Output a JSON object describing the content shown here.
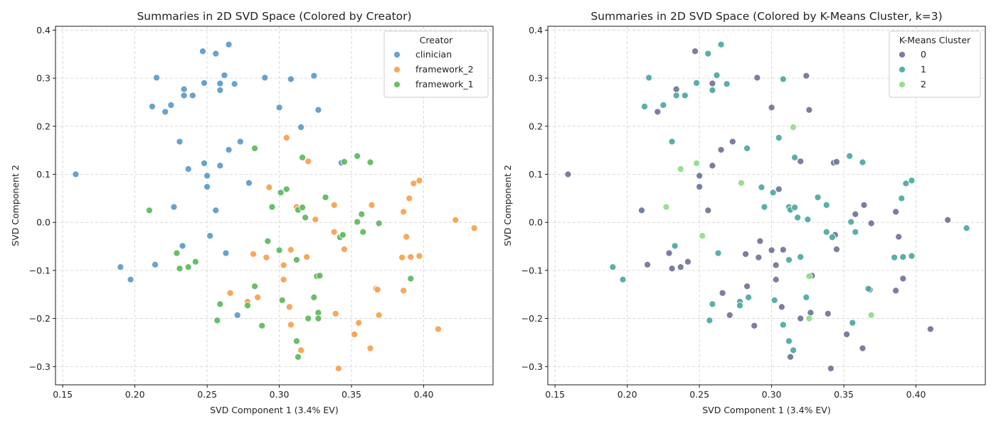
{
  "chart_data": [
    {
      "type": "scatter",
      "title": "Summaries in 2D SVD Space (Colored by Creator)",
      "xlabel": "SVD Component 1 (3.4% EV)",
      "ylabel": "SVD Component 2",
      "xlim": [
        0.145,
        0.448
      ],
      "ylim": [
        -0.338,
        0.408
      ],
      "xticks": [
        0.15,
        0.2,
        0.25,
        0.3,
        0.35,
        0.4
      ],
      "xtick_labels": [
        "0.15",
        "0.20",
        "0.25",
        "0.30",
        "0.35",
        "0.40"
      ],
      "yticks": [
        -0.3,
        -0.2,
        -0.1,
        0.0,
        0.1,
        0.2,
        0.3,
        0.4
      ],
      "ytick_labels": [
        "−0.3",
        "−0.2",
        "−0.1",
        "0.0",
        "0.1",
        "0.2",
        "0.3",
        "0.4"
      ],
      "grid": true,
      "legend": {
        "title": "Creator",
        "placement": "top-right"
      },
      "series": [
        {
          "name": "clinician",
          "color": "#5b9ac9",
          "points": [
            [
              0.159,
              0.1
            ],
            [
              0.19,
              -0.093
            ],
            [
              0.197,
              -0.119
            ],
            [
              0.212,
              0.241
            ],
            [
              0.214,
              -0.088
            ],
            [
              0.215,
              0.301
            ],
            [
              0.221,
              0.23
            ],
            [
              0.225,
              0.244
            ],
            [
              0.227,
              0.032
            ],
            [
              0.231,
              0.168
            ],
            [
              0.233,
              -0.049
            ],
            [
              0.234,
              0.277
            ],
            [
              0.234,
              0.264
            ],
            [
              0.237,
              0.111
            ],
            [
              0.24,
              0.264
            ],
            [
              0.247,
              0.356
            ],
            [
              0.248,
              0.29
            ],
            [
              0.248,
              0.123
            ],
            [
              0.25,
              0.097
            ],
            [
              0.25,
              0.074
            ],
            [
              0.252,
              -0.028
            ],
            [
              0.256,
              0.025
            ],
            [
              0.256,
              0.351
            ],
            [
              0.259,
              0.289
            ],
            [
              0.259,
              0.275
            ],
            [
              0.259,
              0.118
            ],
            [
              0.262,
              0.306
            ],
            [
              0.263,
              -0.064
            ],
            [
              0.265,
              0.37
            ],
            [
              0.265,
              0.151
            ],
            [
              0.269,
              0.288
            ],
            [
              0.271,
              -0.193
            ],
            [
              0.273,
              0.168
            ],
            [
              0.279,
              0.082
            ],
            [
              0.29,
              0.301
            ],
            [
              0.3,
              0.239
            ],
            [
              0.308,
              0.298
            ],
            [
              0.315,
              0.198
            ],
            [
              0.324,
              0.305
            ],
            [
              0.327,
              0.234
            ],
            [
              0.343,
              0.124
            ]
          ]
        },
        {
          "name": "framework_2",
          "color": "#f9a04c",
          "points": [
            [
              0.266,
              -0.147
            ],
            [
              0.278,
              -0.165
            ],
            [
              0.282,
              -0.066
            ],
            [
              0.285,
              -0.156
            ],
            [
              0.291,
              -0.073
            ],
            [
              0.293,
              0.073
            ],
            [
              0.303,
              -0.089
            ],
            [
              0.303,
              -0.119
            ],
            [
              0.305,
              0.176
            ],
            [
              0.307,
              -0.176
            ],
            [
              0.308,
              -0.057
            ],
            [
              0.308,
              -0.213
            ],
            [
              0.312,
              0.032
            ],
            [
              0.315,
              -0.266
            ],
            [
              0.319,
              -0.072
            ],
            [
              0.32,
              0.127
            ],
            [
              0.325,
              0.006
            ],
            [
              0.338,
              0.036
            ],
            [
              0.338,
              -0.02
            ],
            [
              0.339,
              -0.19
            ],
            [
              0.341,
              -0.304
            ],
            [
              0.345,
              -0.056
            ],
            [
              0.352,
              -0.233
            ],
            [
              0.355,
              -0.209
            ],
            [
              0.363,
              -0.262
            ],
            [
              0.364,
              0.036
            ],
            [
              0.367,
              -0.138
            ],
            [
              0.368,
              -0.14
            ],
            [
              0.369,
              -0.193
            ],
            [
              0.385,
              -0.073
            ],
            [
              0.386,
              0.022
            ],
            [
              0.386,
              -0.142
            ],
            [
              0.388,
              -0.03
            ],
            [
              0.39,
              0.05
            ],
            [
              0.391,
              -0.072
            ],
            [
              0.393,
              0.081
            ],
            [
              0.397,
              0.087
            ],
            [
              0.397,
              -0.07
            ],
            [
              0.41,
              -0.222
            ],
            [
              0.422,
              0.005
            ],
            [
              0.435,
              -0.012
            ]
          ]
        },
        {
          "name": "framework_1",
          "color": "#5cb85c",
          "points": [
            [
              0.21,
              0.025
            ],
            [
              0.229,
              -0.064
            ],
            [
              0.231,
              -0.096
            ],
            [
              0.237,
              -0.093
            ],
            [
              0.242,
              -0.082
            ],
            [
              0.257,
              -0.204
            ],
            [
              0.259,
              -0.17
            ],
            [
              0.278,
              -0.173
            ],
            [
              0.283,
              -0.133
            ],
            [
              0.283,
              0.154
            ],
            [
              0.288,
              -0.215
            ],
            [
              0.292,
              -0.039
            ],
            [
              0.295,
              0.032
            ],
            [
              0.3,
              -0.058
            ],
            [
              0.301,
              0.062
            ],
            [
              0.302,
              -0.162
            ],
            [
              0.305,
              0.069
            ],
            [
              0.312,
              -0.078
            ],
            [
              0.312,
              -0.247
            ],
            [
              0.313,
              -0.28
            ],
            [
              0.313,
              0.026
            ],
            [
              0.316,
              0.135
            ],
            [
              0.316,
              0.031
            ],
            [
              0.318,
              0.01
            ],
            [
              0.32,
              -0.2
            ],
            [
              0.324,
              -0.156
            ],
            [
              0.326,
              -0.112
            ],
            [
              0.327,
              -0.188
            ],
            [
              0.327,
              -0.2
            ],
            [
              0.328,
              -0.111
            ],
            [
              0.332,
              0.052
            ],
            [
              0.342,
              -0.031
            ],
            [
              0.344,
              -0.026
            ],
            [
              0.345,
              0.126
            ],
            [
              0.354,
              0.001
            ],
            [
              0.354,
              0.138
            ],
            [
              0.357,
              0.017
            ],
            [
              0.358,
              -0.02
            ],
            [
              0.363,
              0.125
            ],
            [
              0.369,
              -0.002
            ],
            [
              0.391,
              -0.117
            ]
          ]
        }
      ]
    },
    {
      "type": "scatter",
      "title": "Summaries in 2D SVD Space (Colored by K-Means Cluster, k=3)",
      "xlabel": "SVD Component 1 (3.4% EV)",
      "ylabel": "SVD Component 2",
      "xlim": [
        0.145,
        0.448
      ],
      "ylim": [
        -0.338,
        0.408
      ],
      "xticks": [
        0.15,
        0.2,
        0.25,
        0.3,
        0.35,
        0.4
      ],
      "xtick_labels": [
        "0.15",
        "0.20",
        "0.25",
        "0.30",
        "0.35",
        "0.40"
      ],
      "yticks": [
        -0.3,
        -0.2,
        -0.1,
        0.0,
        0.1,
        0.2,
        0.3,
        0.4
      ],
      "ytick_labels": [
        "−0.3",
        "−0.2",
        "−0.1",
        "0.0",
        "0.1",
        "0.2",
        "0.3",
        "0.4"
      ],
      "grid": true,
      "legend": {
        "title": "K-Means Cluster",
        "placement": "top-right"
      },
      "series": [
        {
          "name": "0",
          "color": "#6f7497",
          "points": [
            [
              0.159,
              0.1
            ],
            [
              0.21,
              0.025
            ],
            [
              0.214,
              -0.088
            ],
            [
              0.221,
              0.23
            ],
            [
              0.229,
              -0.064
            ],
            [
              0.231,
              -0.096
            ],
            [
              0.234,
              0.277
            ],
            [
              0.237,
              -0.093
            ],
            [
              0.242,
              -0.082
            ],
            [
              0.247,
              0.356
            ],
            [
              0.25,
              0.097
            ],
            [
              0.25,
              0.074
            ],
            [
              0.256,
              0.025
            ],
            [
              0.259,
              0.289
            ],
            [
              0.259,
              0.118
            ],
            [
              0.265,
              0.151
            ],
            [
              0.266,
              -0.147
            ],
            [
              0.271,
              -0.193
            ],
            [
              0.273,
              0.168
            ],
            [
              0.282,
              -0.066
            ],
            [
              0.283,
              -0.133
            ],
            [
              0.288,
              -0.215
            ],
            [
              0.29,
              0.301
            ],
            [
              0.291,
              -0.073
            ],
            [
              0.292,
              -0.039
            ],
            [
              0.3,
              0.239
            ],
            [
              0.3,
              -0.058
            ],
            [
              0.303,
              -0.089
            ],
            [
              0.303,
              -0.119
            ],
            [
              0.305,
              0.069
            ],
            [
              0.307,
              -0.176
            ],
            [
              0.308,
              -0.057
            ],
            [
              0.313,
              -0.28
            ],
            [
              0.32,
              -0.2
            ],
            [
              0.32,
              0.127
            ],
            [
              0.324,
              0.305
            ],
            [
              0.326,
              0.234
            ],
            [
              0.327,
              -0.188
            ],
            [
              0.328,
              -0.111
            ],
            [
              0.339,
              -0.19
            ],
            [
              0.341,
              -0.304
            ],
            [
              0.343,
              0.124
            ],
            [
              0.344,
              -0.026
            ],
            [
              0.345,
              0.126
            ],
            [
              0.345,
              -0.056
            ],
            [
              0.352,
              -0.233
            ],
            [
              0.358,
              0.017
            ],
            [
              0.363,
              -0.262
            ],
            [
              0.364,
              0.036
            ],
            [
              0.368,
              -0.14
            ],
            [
              0.369,
              -0.002
            ],
            [
              0.386,
              0.022
            ],
            [
              0.386,
              -0.142
            ],
            [
              0.388,
              -0.03
            ],
            [
              0.391,
              -0.117
            ],
            [
              0.41,
              -0.222
            ],
            [
              0.422,
              0.005
            ]
          ]
        },
        {
          "name": "1",
          "color": "#4ba8a2",
          "points": [
            [
              0.19,
              -0.093
            ],
            [
              0.197,
              -0.119
            ],
            [
              0.212,
              0.241
            ],
            [
              0.215,
              0.301
            ],
            [
              0.225,
              0.244
            ],
            [
              0.231,
              0.168
            ],
            [
              0.233,
              -0.049
            ],
            [
              0.234,
              0.264
            ],
            [
              0.24,
              0.264
            ],
            [
              0.248,
              0.29
            ],
            [
              0.256,
              0.351
            ],
            [
              0.257,
              -0.204
            ],
            [
              0.259,
              0.275
            ],
            [
              0.259,
              -0.17
            ],
            [
              0.262,
              0.306
            ],
            [
              0.263,
              -0.064
            ],
            [
              0.265,
              0.37
            ],
            [
              0.269,
              0.288
            ],
            [
              0.278,
              -0.165
            ],
            [
              0.278,
              -0.173
            ],
            [
              0.283,
              0.154
            ],
            [
              0.284,
              -0.156
            ],
            [
              0.293,
              0.073
            ],
            [
              0.295,
              0.032
            ],
            [
              0.301,
              0.062
            ],
            [
              0.302,
              -0.162
            ],
            [
              0.305,
              0.176
            ],
            [
              0.308,
              0.298
            ],
            [
              0.308,
              -0.213
            ],
            [
              0.312,
              -0.078
            ],
            [
              0.312,
              -0.247
            ],
            [
              0.312,
              0.032
            ],
            [
              0.313,
              0.026
            ],
            [
              0.315,
              -0.266
            ],
            [
              0.316,
              0.135
            ],
            [
              0.316,
              0.031
            ],
            [
              0.318,
              0.01
            ],
            [
              0.32,
              -0.072
            ],
            [
              0.324,
              -0.156
            ],
            [
              0.325,
              0.006
            ],
            [
              0.332,
              0.052
            ],
            [
              0.338,
              0.036
            ],
            [
              0.338,
              -0.02
            ],
            [
              0.342,
              -0.031
            ],
            [
              0.354,
              0.138
            ],
            [
              0.355,
              0.001
            ],
            [
              0.356,
              -0.209
            ],
            [
              0.358,
              -0.02
            ],
            [
              0.363,
              0.125
            ],
            [
              0.367,
              -0.138
            ],
            [
              0.385,
              -0.073
            ],
            [
              0.39,
              0.05
            ],
            [
              0.391,
              -0.072
            ],
            [
              0.393,
              0.081
            ],
            [
              0.397,
              0.087
            ],
            [
              0.397,
              -0.07
            ],
            [
              0.435,
              -0.012
            ]
          ]
        },
        {
          "name": "2",
          "color": "#90db8a",
          "points": [
            [
              0.227,
              0.032
            ],
            [
              0.237,
              0.111
            ],
            [
              0.248,
              0.123
            ],
            [
              0.252,
              -0.028
            ],
            [
              0.279,
              0.082
            ],
            [
              0.315,
              0.198
            ],
            [
              0.326,
              -0.112
            ],
            [
              0.326,
              -0.2
            ],
            [
              0.369,
              -0.193
            ]
          ]
        }
      ]
    }
  ]
}
